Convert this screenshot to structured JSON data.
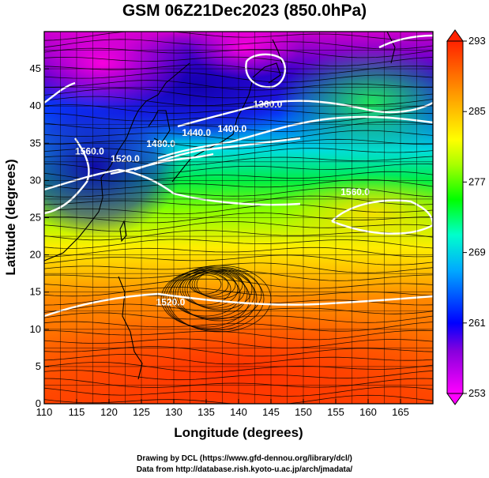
{
  "title": "GSM 06Z21Dec2023 (850.0hPa)",
  "credits": [
    "Drawing by DCL (https://www.gfd-dennou.org/library/dcl/)",
    "Data from http://database.rish.kyoto-u.ac.jp/arch/jmadata/"
  ],
  "chart_data": {
    "type": "heatmap",
    "xlabel": "Longitude (degrees)",
    "ylabel": "Latitude  (degrees)",
    "xlim": [
      110,
      170
    ],
    "ylim": [
      0,
      50
    ],
    "x_ticks": [
      110,
      115,
      120,
      125,
      130,
      135,
      140,
      145,
      150,
      155,
      160,
      165
    ],
    "y_ticks": [
      0,
      5,
      10,
      15,
      20,
      25,
      30,
      35,
      40,
      45
    ],
    "grid": true,
    "colorbar": {
      "ticks": [
        253,
        261,
        269,
        277,
        285,
        293
      ],
      "range": [
        253,
        293
      ],
      "colors": [
        "#ff00ff",
        "#6600cc",
        "#0000ff",
        "#00ffff",
        "#00ff00",
        "#ffff00",
        "#ff9900",
        "#ff0000"
      ]
    },
    "contour_labels": [
      {
        "text": "1360.0",
        "lon": 144.5,
        "lat": 39.8
      },
      {
        "text": "1400.0",
        "lon": 139.0,
        "lat": 36.5
      },
      {
        "text": "1440.0",
        "lon": 133.5,
        "lat": 36.0
      },
      {
        "text": "1480.0",
        "lon": 128.0,
        "lat": 34.5
      },
      {
        "text": "1520.0",
        "lon": 122.5,
        "lat": 32.5
      },
      {
        "text": "1560.0",
        "lon": 117.0,
        "lat": 33.5
      },
      {
        "text": "1520.0",
        "lon": 129.5,
        "lat": 13.2
      },
      {
        "text": "1560.0",
        "lon": 158.0,
        "lat": 28.0
      }
    ]
  }
}
